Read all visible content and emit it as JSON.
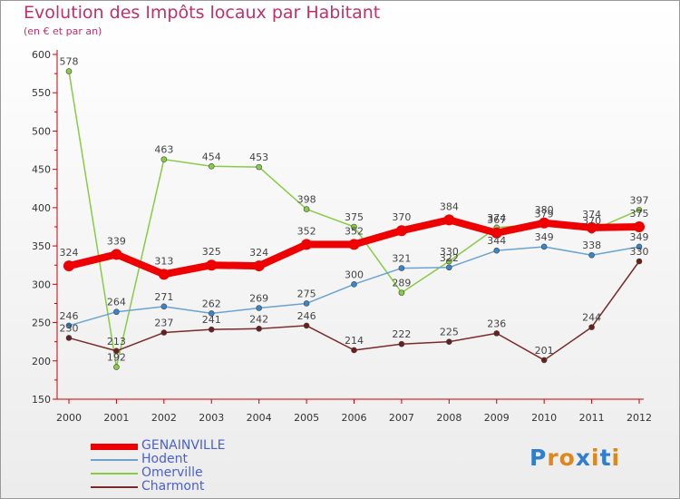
{
  "header": {
    "title": "Evolution des Impôts locaux par Habitant",
    "subtitle": "(en € et par an)"
  },
  "colors": {
    "title": "#c0306a",
    "legend_text": "#4a5fd0",
    "axis": "#cc0000"
  },
  "logo": {
    "letters": [
      "P",
      "r",
      "o",
      "x",
      "i",
      "t",
      "i"
    ],
    "colors": [
      "#2f7fd0",
      "#e0871a",
      "#e0871a",
      "#2f7fd0",
      "#e0871a",
      "#2f7fd0",
      "#e0871a"
    ]
  },
  "chart_data": {
    "type": "line",
    "x": [
      "2000",
      "2001",
      "2002",
      "2003",
      "2004",
      "2005",
      "2006",
      "2007",
      "2008",
      "2009",
      "2010",
      "2011",
      "2012"
    ],
    "ylim": [
      150,
      600
    ],
    "yticks": [
      150,
      200,
      250,
      300,
      350,
      400,
      450,
      500,
      550,
      600
    ],
    "grid": false,
    "legend_position": "bottom-left",
    "series": [
      {
        "name": "Omerville",
        "color": "#88cc44",
        "point_color": "#88cc44",
        "width": 1.5,
        "marker": 3,
        "values": [
          578,
          192,
          463,
          454,
          453,
          398,
          375,
          289,
          330,
          374,
          379,
          370,
          397
        ],
        "labels": [
          "578",
          "192",
          "463",
          "454",
          "453",
          "398",
          "375",
          "289",
          "330",
          "374",
          "379",
          "370",
          "397"
        ]
      },
      {
        "name": "Charmont",
        "color": "#7a2a2a",
        "point_color": "#6a1f1f",
        "width": 1.5,
        "marker": 3,
        "values": [
          230,
          213,
          237,
          241,
          242,
          246,
          214,
          222,
          225,
          236,
          201,
          244,
          330
        ],
        "labels": [
          "230",
          "213",
          "237",
          "241",
          "242",
          "246",
          "214",
          "222",
          "225",
          "236",
          "201",
          "244",
          "330"
        ]
      },
      {
        "name": "Hodent",
        "color": "#6ba3d0",
        "point_color": "#3a85c8",
        "width": 1.5,
        "marker": 3,
        "values": [
          246,
          264,
          271,
          262,
          269,
          275,
          300,
          321,
          322,
          344,
          349,
          338,
          349
        ],
        "labels": [
          "246",
          "264",
          "271",
          "262",
          "269",
          "275",
          "300",
          "321",
          "322",
          "344",
          "349",
          "338",
          "349"
        ]
      },
      {
        "name": "GENAINVILLE",
        "color": "#ee0000",
        "point_color": "#ee0000",
        "width": 8,
        "marker": 6,
        "values": [
          324,
          339,
          313,
          325,
          324,
          352,
          352,
          370,
          384,
          367,
          380,
          374,
          375
        ],
        "labels": [
          "324",
          "339",
          "313",
          "325",
          "324",
          "352",
          "352",
          "370",
          "384",
          "367",
          "380",
          "374",
          "375"
        ]
      }
    ],
    "legend_order": [
      "GENAINVILLE",
      "Hodent",
      "Omerville",
      "Charmont"
    ]
  }
}
